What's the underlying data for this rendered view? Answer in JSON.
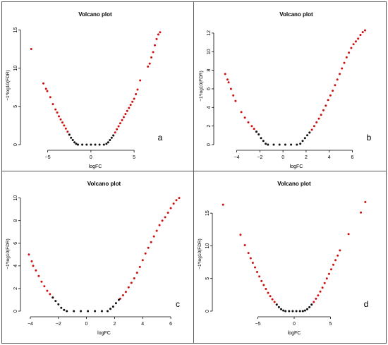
{
  "colors": {
    "significant": "#cc1111",
    "nonsignificant": "#111111",
    "axis": "#000000"
  },
  "chart_data": [
    {
      "type": "scatter",
      "panel_label": "a",
      "title": "Volcano plot",
      "xlabel": "logFC",
      "ylabel": "−1*log10(FDR)",
      "xlim": [
        -7.5,
        8.5
      ],
      "ylim": [
        0,
        15.5
      ],
      "xticks": [
        -5,
        0,
        5
      ],
      "yticks": [
        0,
        5,
        10,
        15
      ],
      "series": [
        {
          "color": "#cc1111",
          "points": [
            [
              -6.9,
              12.5
            ],
            [
              -5.5,
              8.0
            ],
            [
              -5.2,
              7.3
            ],
            [
              -5.05,
              7.0
            ],
            [
              -4.7,
              6.2
            ],
            [
              -4.4,
              5.3
            ],
            [
              -4.1,
              4.6
            ],
            [
              -3.9,
              4.2
            ],
            [
              -3.7,
              3.7
            ],
            [
              -3.5,
              3.3
            ],
            [
              -3.3,
              2.9
            ],
            [
              -3.1,
              2.5
            ],
            [
              -2.9,
              2.1
            ],
            [
              -2.7,
              1.7
            ],
            [
              -2.5,
              1.3
            ],
            [
              2.6,
              1.2
            ],
            [
              2.8,
              1.6
            ],
            [
              3.0,
              2.0
            ],
            [
              3.2,
              2.4
            ],
            [
              3.4,
              2.8
            ],
            [
              3.6,
              3.2
            ],
            [
              3.8,
              3.6
            ],
            [
              4.0,
              4.0
            ],
            [
              4.2,
              4.4
            ],
            [
              4.4,
              4.8
            ],
            [
              4.6,
              5.2
            ],
            [
              4.8,
              5.6
            ],
            [
              5.0,
              6.0
            ],
            [
              5.2,
              6.6
            ],
            [
              5.4,
              7.2
            ],
            [
              5.7,
              8.4
            ],
            [
              6.6,
              10.2
            ],
            [
              6.8,
              10.6
            ],
            [
              7.0,
              11.4
            ],
            [
              7.2,
              12.1
            ],
            [
              7.4,
              13.0
            ],
            [
              7.6,
              13.8
            ],
            [
              7.8,
              14.4
            ],
            [
              8.0,
              14.7
            ]
          ]
        },
        {
          "color": "#111111",
          "points": [
            [
              -2.5,
              1.3
            ],
            [
              -2.3,
              0.9
            ],
            [
              -2.1,
              0.6
            ],
            [
              -1.9,
              0.3
            ],
            [
              -1.7,
              0.1
            ],
            [
              -1.5,
              0.0
            ],
            [
              -1.0,
              0.0
            ],
            [
              -0.5,
              0.0
            ],
            [
              0.0,
              0.0
            ],
            [
              0.5,
              0.0
            ],
            [
              1.0,
              0.0
            ],
            [
              1.5,
              0.0
            ],
            [
              1.8,
              0.1
            ],
            [
              2.0,
              0.3
            ],
            [
              2.2,
              0.6
            ],
            [
              2.4,
              0.9
            ],
            [
              2.6,
              1.2
            ]
          ]
        }
      ]
    },
    {
      "type": "scatter",
      "panel_label": "b",
      "title": "Volcano plot",
      "xlabel": "logFC",
      "ylabel": "−1*log10(FDR)",
      "xlim": [
        -5.5,
        7.8
      ],
      "ylim": [
        0,
        12.6
      ],
      "xticks": [
        -4,
        -2,
        0,
        2,
        4,
        6
      ],
      "yticks": [
        0,
        2,
        4,
        6,
        8,
        10,
        12
      ],
      "series": [
        {
          "color": "#cc1111",
          "points": [
            [
              -5.0,
              7.6
            ],
            [
              -4.8,
              7.0
            ],
            [
              -4.7,
              6.7
            ],
            [
              -4.5,
              6.0
            ],
            [
              -4.3,
              5.3
            ],
            [
              -4.1,
              4.7
            ],
            [
              -3.6,
              3.5
            ],
            [
              -3.3,
              2.9
            ],
            [
              -3.0,
              2.4
            ],
            [
              -2.7,
              2.0
            ],
            [
              -2.5,
              1.7
            ],
            [
              -2.3,
              1.4
            ],
            [
              2.3,
              1.3
            ],
            [
              2.5,
              1.6
            ],
            [
              2.7,
              2.0
            ],
            [
              2.9,
              2.4
            ],
            [
              3.1,
              2.8
            ],
            [
              3.3,
              3.2
            ],
            [
              3.5,
              3.7
            ],
            [
              3.7,
              4.2
            ],
            [
              3.9,
              4.8
            ],
            [
              4.1,
              5.3
            ],
            [
              4.3,
              5.8
            ],
            [
              4.5,
              6.4
            ],
            [
              4.7,
              7.0
            ],
            [
              4.9,
              7.6
            ],
            [
              5.1,
              8.2
            ],
            [
              5.3,
              8.8
            ],
            [
              5.5,
              9.4
            ],
            [
              5.7,
              9.9
            ],
            [
              5.9,
              10.4
            ],
            [
              6.1,
              10.8
            ],
            [
              6.3,
              11.1
            ],
            [
              6.5,
              11.4
            ],
            [
              6.7,
              11.8
            ],
            [
              6.9,
              12.1
            ],
            [
              7.1,
              12.3
            ]
          ]
        },
        {
          "color": "#111111",
          "points": [
            [
              -2.3,
              1.4
            ],
            [
              -2.1,
              1.1
            ],
            [
              -1.9,
              0.7
            ],
            [
              -1.7,
              0.4
            ],
            [
              -1.5,
              0.1
            ],
            [
              -1.3,
              0.0
            ],
            [
              -0.8,
              0.0
            ],
            [
              -0.3,
              0.0
            ],
            [
              0.2,
              0.0
            ],
            [
              0.7,
              0.0
            ],
            [
              1.2,
              0.0
            ],
            [
              1.5,
              0.1
            ],
            [
              1.7,
              0.4
            ],
            [
              1.9,
              0.7
            ],
            [
              2.1,
              1.0
            ],
            [
              2.3,
              1.3
            ]
          ]
        }
      ]
    },
    {
      "type": "scatter",
      "panel_label": "c",
      "title": "Volcano plot",
      "xlabel": "logFC",
      "ylabel": "−1*log10(FDR)",
      "xlim": [
        -4.3,
        6.8
      ],
      "ylim": [
        0,
        10.1
      ],
      "xticks": [
        -4,
        -2,
        0,
        2,
        4,
        6
      ],
      "yticks": [
        0,
        2,
        4,
        6,
        8,
        10
      ],
      "series": [
        {
          "color": "#cc1111",
          "points": [
            [
              -4.1,
              5.0
            ],
            [
              -3.9,
              4.4
            ],
            [
              -3.8,
              4.0
            ],
            [
              -3.6,
              3.6
            ],
            [
              -3.4,
              3.1
            ],
            [
              -3.2,
              2.6
            ],
            [
              -3.0,
              2.2
            ],
            [
              -2.8,
              1.8
            ],
            [
              -2.6,
              1.5
            ],
            [
              -2.4,
              1.2
            ],
            [
              2.4,
              1.1
            ],
            [
              2.6,
              1.4
            ],
            [
              2.8,
              1.7
            ],
            [
              3.0,
              2.1
            ],
            [
              3.2,
              2.5
            ],
            [
              3.4,
              2.9
            ],
            [
              3.6,
              3.4
            ],
            [
              3.8,
              3.9
            ],
            [
              4.0,
              4.5
            ],
            [
              4.2,
              5.1
            ],
            [
              4.4,
              5.6
            ],
            [
              4.6,
              6.1
            ],
            [
              4.8,
              6.6
            ],
            [
              5.0,
              7.1
            ],
            [
              5.2,
              7.6
            ],
            [
              5.4,
              8.0
            ],
            [
              5.6,
              8.3
            ],
            [
              5.8,
              8.7
            ],
            [
              6.0,
              9.1
            ],
            [
              6.2,
              9.5
            ],
            [
              6.4,
              9.8
            ],
            [
              6.6,
              10.0
            ]
          ]
        },
        {
          "color": "#111111",
          "points": [
            [
              -2.4,
              1.2
            ],
            [
              -2.2,
              0.9
            ],
            [
              -2.0,
              0.6
            ],
            [
              -1.8,
              0.3
            ],
            [
              -1.6,
              0.1
            ],
            [
              -1.4,
              0.0
            ],
            [
              -0.9,
              0.0
            ],
            [
              -0.4,
              0.0
            ],
            [
              0.1,
              0.0
            ],
            [
              0.6,
              0.0
            ],
            [
              1.1,
              0.0
            ],
            [
              1.5,
              0.0
            ],
            [
              1.7,
              0.2
            ],
            [
              1.9,
              0.4
            ],
            [
              2.1,
              0.7
            ],
            [
              2.3,
              1.0
            ]
          ]
        }
      ]
    },
    {
      "type": "scatter",
      "panel_label": "d",
      "title": "Volcano plot",
      "xlabel": "logFC",
      "ylabel": "−1*log10(FDR)",
      "xlim": [
        -10.5,
        10.5
      ],
      "ylim": [
        0,
        17.5
      ],
      "xticks": [
        -5,
        0,
        5
      ],
      "yticks": [
        0,
        5,
        10,
        15
      ],
      "series": [
        {
          "color": "#cc1111",
          "points": [
            [
              -9.8,
              16.3
            ],
            [
              -7.4,
              11.7
            ],
            [
              -6.8,
              10.1
            ],
            [
              -6.3,
              8.9
            ],
            [
              -6.0,
              8.1
            ],
            [
              -5.7,
              7.4
            ],
            [
              -5.4,
              6.7
            ],
            [
              -5.1,
              6.0
            ],
            [
              -4.8,
              5.3
            ],
            [
              -4.5,
              4.6
            ],
            [
              -4.2,
              4.0
            ],
            [
              -3.9,
              3.4
            ],
            [
              -3.6,
              2.8
            ],
            [
              -3.3,
              2.3
            ],
            [
              -3.0,
              1.8
            ],
            [
              -2.7,
              1.4
            ],
            [
              -2.4,
              1.0
            ],
            [
              2.4,
              1.0
            ],
            [
              2.7,
              1.4
            ],
            [
              3.0,
              1.9
            ],
            [
              3.3,
              2.4
            ],
            [
              3.6,
              3.0
            ],
            [
              3.9,
              3.6
            ],
            [
              4.2,
              4.3
            ],
            [
              4.5,
              5.0
            ],
            [
              4.8,
              5.7
            ],
            [
              5.1,
              6.4
            ],
            [
              5.4,
              7.1
            ],
            [
              5.7,
              7.8
            ],
            [
              6.0,
              8.5
            ],
            [
              6.3,
              9.3
            ],
            [
              7.5,
              11.8
            ],
            [
              9.2,
              15.1
            ],
            [
              9.8,
              16.7
            ]
          ]
        },
        {
          "color": "#111111",
          "points": [
            [
              -2.4,
              1.0
            ],
            [
              -2.1,
              0.6
            ],
            [
              -1.8,
              0.3
            ],
            [
              -1.5,
              0.1
            ],
            [
              -1.2,
              0.0
            ],
            [
              -0.7,
              0.0
            ],
            [
              -0.2,
              0.0
            ],
            [
              0.3,
              0.0
            ],
            [
              0.8,
              0.0
            ],
            [
              1.2,
              0.0
            ],
            [
              1.5,
              0.1
            ],
            [
              1.8,
              0.3
            ],
            [
              2.1,
              0.6
            ],
            [
              2.4,
              1.0
            ]
          ]
        }
      ]
    }
  ]
}
